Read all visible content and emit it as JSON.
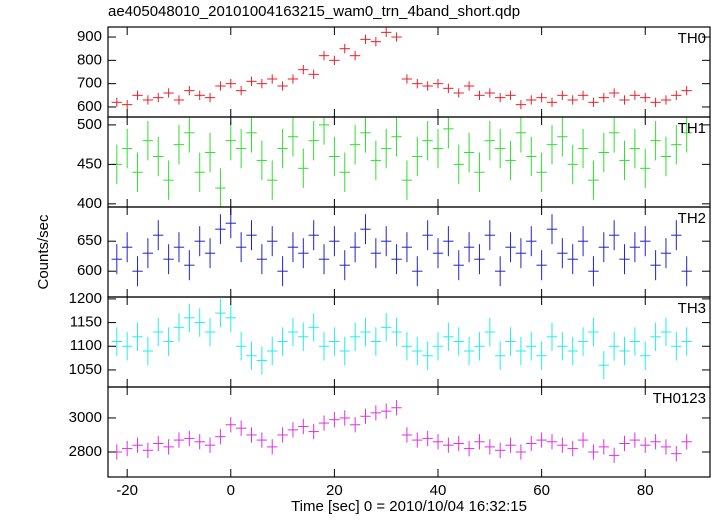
{
  "chart_data": {
    "type": "step",
    "title": "ae405048010_20101004163215_wam0_trn_4band_short.qdp",
    "ylabel": "Counts/sec",
    "xlabel": "Time [sec] 0 = 2010/10/04 16:32:15",
    "xlim": [
      -23.7,
      92.5
    ],
    "xticks": [
      -20,
      0,
      20,
      40,
      60,
      80
    ],
    "x": [
      -22,
      -20,
      -18,
      -16,
      -14,
      -12,
      -10,
      -8,
      -6,
      -4,
      -2,
      0,
      2,
      4,
      6,
      8,
      10,
      12,
      14,
      16,
      18,
      20,
      22,
      24,
      26,
      28,
      30,
      32,
      34,
      36,
      38,
      40,
      42,
      44,
      46,
      48,
      50,
      52,
      54,
      56,
      58,
      60,
      62,
      64,
      66,
      68,
      70,
      72,
      74,
      76,
      78,
      80,
      82,
      84,
      86,
      88
    ],
    "series": [
      {
        "name": "TH0",
        "color": "#e8202a",
        "ylim": [
          557,
          943
        ],
        "yticks": [
          600,
          700,
          800,
          900
        ],
        "error": 20,
        "values": [
          620,
          610,
          650,
          630,
          640,
          660,
          630,
          670,
          650,
          640,
          690,
          700,
          670,
          710,
          700,
          720,
          690,
          720,
          760,
          740,
          820,
          800,
          850,
          820,
          890,
          880,
          920,
          900,
          720,
          700,
          690,
          700,
          680,
          660,
          690,
          650,
          660,
          640,
          650,
          610,
          630,
          640,
          620,
          650,
          630,
          650,
          620,
          640,
          660,
          630,
          650,
          640,
          620,
          630,
          650,
          670
        ]
      },
      {
        "name": "TH1",
        "color": "#33dd33",
        "ylim": [
          396,
          510
        ],
        "yticks": [
          400,
          450,
          500
        ],
        "error": 25,
        "values": [
          450,
          470,
          440,
          480,
          460,
          430,
          475,
          490,
          440,
          465,
          420,
          480,
          470,
          490,
          455,
          430,
          470,
          485,
          445,
          480,
          500,
          460,
          440,
          475,
          490,
          455,
          470,
          485,
          430,
          460,
          480,
          470,
          495,
          450,
          465,
          440,
          480,
          470,
          455,
          490,
          460,
          440,
          475,
          485,
          450,
          470,
          430,
          465,
          490,
          455,
          470,
          445,
          480,
          460,
          475,
          490
        ]
      },
      {
        "name": "TH2",
        "color": "#2222cc",
        "ylim": [
          557,
          707
        ],
        "yticks": [
          600,
          650
        ],
        "error": 25,
        "values": [
          620,
          640,
          600,
          630,
          660,
          620,
          640,
          610,
          650,
          630,
          670,
          680,
          640,
          660,
          620,
          650,
          600,
          640,
          630,
          660,
          620,
          650,
          610,
          640,
          670,
          630,
          650,
          620,
          640,
          600,
          660,
          630,
          650,
          610,
          640,
          620,
          660,
          600,
          640,
          630,
          650,
          610,
          670,
          630,
          620,
          650,
          600,
          640,
          660,
          620,
          640,
          650,
          610,
          630,
          660,
          600
        ]
      },
      {
        "name": "TH3",
        "color": "#22eeee",
        "ylim": [
          1014,
          1204
        ],
        "yticks": [
          1050,
          1100,
          1150,
          1200
        ],
        "error": 30,
        "values": [
          1110,
          1100,
          1120,
          1090,
          1130,
          1110,
          1140,
          1160,
          1150,
          1130,
          1170,
          1160,
          1100,
          1080,
          1070,
          1090,
          1110,
          1130,
          1120,
          1140,
          1100,
          1110,
          1090,
          1120,
          1130,
          1110,
          1140,
          1130,
          1100,
          1090,
          1080,
          1100,
          1120,
          1110,
          1090,
          1100,
          1130,
          1080,
          1110,
          1090,
          1100,
          1080,
          1120,
          1100,
          1090,
          1110,
          1130,
          1060,
          1100,
          1090,
          1110,
          1080,
          1120,
          1130,
          1100,
          1110
        ]
      },
      {
        "name": "TH0123",
        "color": "#e030e0",
        "ylim": [
          2653,
          3182
        ],
        "yticks": [
          2800,
          3000
        ],
        "error": 45,
        "values": [
          2800,
          2820,
          2840,
          2810,
          2850,
          2830,
          2870,
          2880,
          2860,
          2840,
          2890,
          2960,
          2940,
          2900,
          2870,
          2830,
          2900,
          2930,
          2950,
          2920,
          2970,
          2990,
          3000,
          2960,
          3010,
          3030,
          3040,
          3060,
          2900,
          2870,
          2880,
          2860,
          2840,
          2850,
          2820,
          2860,
          2830,
          2810,
          2840,
          2800,
          2850,
          2870,
          2860,
          2840,
          2820,
          2870,
          2800,
          2830,
          2780,
          2850,
          2870,
          2840,
          2860,
          2830,
          2790,
          2860
        ]
      }
    ]
  }
}
